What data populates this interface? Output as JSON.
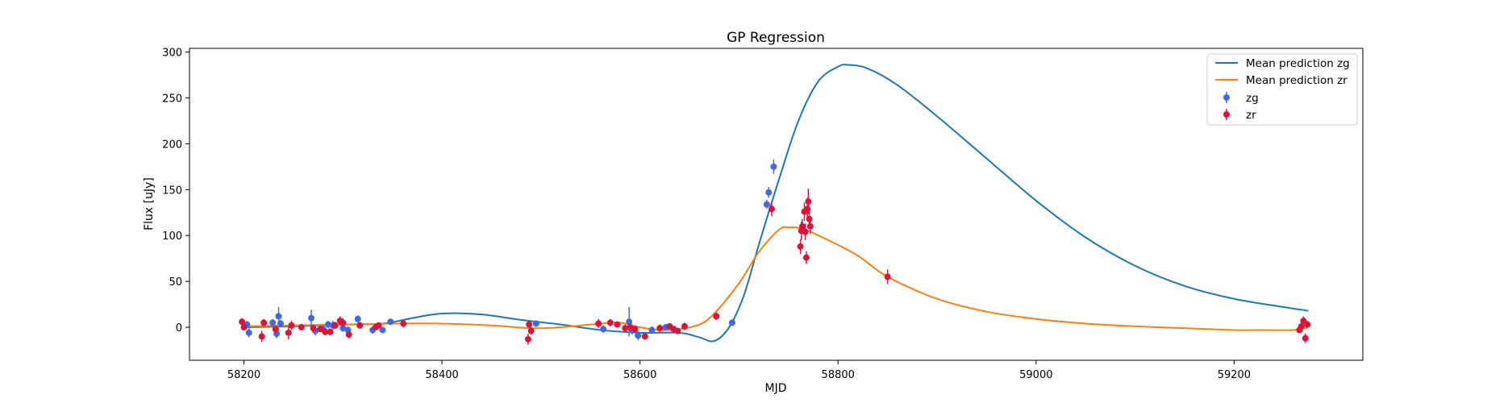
{
  "chart_data": {
    "type": "scatter",
    "title": "GP Regression",
    "xlabel": "MJD",
    "ylabel": "Flux [uJy]",
    "xlim": [
      58145,
      59330
    ],
    "ylim": [
      -36,
      304
    ],
    "xticks": [
      58200,
      58400,
      58600,
      58800,
      59000,
      59200
    ],
    "yticks": [
      0,
      50,
      100,
      150,
      200,
      250,
      300
    ],
    "grid": false,
    "legend_position": "top-right",
    "legend": [
      "Mean prediction zg",
      "Mean prediction zr",
      "zg",
      "zr"
    ],
    "series": [
      {
        "name": "Mean prediction zg",
        "kind": "line",
        "color": "#1f77b4",
        "points": [
          [
            58200,
            0
          ],
          [
            58250,
            1
          ],
          [
            58300,
            3
          ],
          [
            58340,
            4
          ],
          [
            58370,
            10
          ],
          [
            58400,
            15
          ],
          [
            58440,
            14
          ],
          [
            58480,
            8
          ],
          [
            58520,
            3
          ],
          [
            58560,
            -3
          ],
          [
            58600,
            -6
          ],
          [
            58640,
            -6
          ],
          [
            58660,
            -11
          ],
          [
            58675,
            -15
          ],
          [
            58690,
            0
          ],
          [
            58705,
            35
          ],
          [
            58720,
            90
          ],
          [
            58740,
            160
          ],
          [
            58760,
            225
          ],
          [
            58780,
            268
          ],
          [
            58800,
            284
          ],
          [
            58810,
            286
          ],
          [
            58830,
            282
          ],
          [
            58860,
            264
          ],
          [
            58900,
            230
          ],
          [
            58950,
            184
          ],
          [
            59000,
            138
          ],
          [
            59050,
            98
          ],
          [
            59100,
            67
          ],
          [
            59150,
            45
          ],
          [
            59200,
            31
          ],
          [
            59250,
            22
          ],
          [
            59275,
            18
          ]
        ]
      },
      {
        "name": "Mean prediction zr",
        "kind": "line",
        "color": "#ff7f0e",
        "points": [
          [
            58200,
            1
          ],
          [
            58250,
            2
          ],
          [
            58300,
            3
          ],
          [
            58350,
            4
          ],
          [
            58400,
            4
          ],
          [
            58450,
            2
          ],
          [
            58490,
            -1
          ],
          [
            58520,
            0
          ],
          [
            58560,
            4
          ],
          [
            58580,
            5
          ],
          [
            58600,
            0
          ],
          [
            58620,
            -3
          ],
          [
            58640,
            -2
          ],
          [
            58660,
            3
          ],
          [
            58675,
            15
          ],
          [
            58700,
            48
          ],
          [
            58720,
            82
          ],
          [
            58740,
            106
          ],
          [
            58750,
            109
          ],
          [
            58765,
            107
          ],
          [
            58790,
            95
          ],
          [
            58820,
            78
          ],
          [
            58850,
            55
          ],
          [
            58900,
            31
          ],
          [
            58950,
            17
          ],
          [
            59000,
            9
          ],
          [
            59050,
            4
          ],
          [
            59100,
            1
          ],
          [
            59150,
            -1
          ],
          [
            59200,
            -3
          ],
          [
            59230,
            -3
          ],
          [
            59260,
            -3
          ],
          [
            59275,
            0
          ]
        ]
      },
      {
        "name": "zg",
        "kind": "errorbar",
        "color": "#4169e1",
        "points": [
          [
            58203,
            3,
            4
          ],
          [
            58205,
            -6,
            5
          ],
          [
            58229,
            5,
            4
          ],
          [
            58233,
            -7,
            5
          ],
          [
            58235,
            12,
            10
          ],
          [
            58237,
            4,
            4
          ],
          [
            58268,
            10,
            9
          ],
          [
            58272,
            -4,
            5
          ],
          [
            58280,
            -2,
            4
          ],
          [
            58285,
            3,
            4
          ],
          [
            58290,
            2,
            5
          ],
          [
            58300,
            -1,
            4
          ],
          [
            58305,
            -3,
            4
          ],
          [
            58315,
            9,
            4
          ],
          [
            58330,
            -3,
            4
          ],
          [
            58340,
            -3,
            3
          ],
          [
            58348,
            6,
            3
          ],
          [
            58495,
            4,
            3
          ],
          [
            58563,
            -2,
            4
          ],
          [
            58589,
            6,
            16
          ],
          [
            58592,
            -3,
            5
          ],
          [
            58598,
            -9,
            5
          ],
          [
            58612,
            -3,
            4
          ],
          [
            58626,
            0,
            3
          ],
          [
            58693,
            5,
            3
          ],
          [
            58728,
            134,
            5
          ],
          [
            58730,
            147,
            6
          ],
          [
            58735,
            175,
            8
          ]
        ]
      },
      {
        "name": "zr",
        "kind": "errorbar",
        "color": "#dc143c",
        "points": [
          [
            58198,
            6,
            4
          ],
          [
            58200,
            0,
            3
          ],
          [
            58218,
            -10,
            6
          ],
          [
            58220,
            5,
            4
          ],
          [
            58232,
            -2,
            4
          ],
          [
            58245,
            -6,
            7
          ],
          [
            58248,
            2,
            5
          ],
          [
            58258,
            0,
            3
          ],
          [
            58270,
            -1,
            4
          ],
          [
            58277,
            -2,
            3
          ],
          [
            58282,
            -5,
            4
          ],
          [
            58287,
            -5,
            4
          ],
          [
            58292,
            2,
            4
          ],
          [
            58297,
            7,
            5
          ],
          [
            58300,
            5,
            5
          ],
          [
            58306,
            -8,
            4
          ],
          [
            58317,
            2,
            3
          ],
          [
            58333,
            0,
            3
          ],
          [
            58336,
            2,
            3
          ],
          [
            58361,
            4,
            4
          ],
          [
            58487,
            -13,
            6
          ],
          [
            58488,
            3,
            3
          ],
          [
            58490,
            -4,
            4
          ],
          [
            58558,
            4,
            5
          ],
          [
            58570,
            5,
            4
          ],
          [
            58577,
            3,
            3
          ],
          [
            58585,
            -1,
            4
          ],
          [
            58590,
            0,
            4
          ],
          [
            58595,
            -2,
            3
          ],
          [
            58605,
            -10,
            3
          ],
          [
            58620,
            -1,
            4
          ],
          [
            58630,
            1,
            3
          ],
          [
            58634,
            -2,
            3
          ],
          [
            58638,
            -4,
            3
          ],
          [
            58645,
            1,
            4
          ],
          [
            58677,
            12,
            4
          ],
          [
            58733,
            129,
            8
          ],
          [
            58762,
            88,
            8
          ],
          [
            58763,
            105,
            10
          ],
          [
            58764,
            110,
            8
          ],
          [
            58766,
            126,
            10
          ],
          [
            58767,
            104,
            9
          ],
          [
            58768,
            76,
            7
          ],
          [
            58769,
            129,
            12
          ],
          [
            58770,
            137,
            14
          ],
          [
            58771,
            118,
            9
          ],
          [
            58772,
            110,
            8
          ],
          [
            58850,
            55,
            8
          ],
          [
            59266,
            -3,
            3
          ],
          [
            59268,
            1,
            4
          ],
          [
            59270,
            7,
            5
          ],
          [
            59272,
            -12,
            5
          ],
          [
            59274,
            3,
            4
          ]
        ]
      }
    ]
  }
}
